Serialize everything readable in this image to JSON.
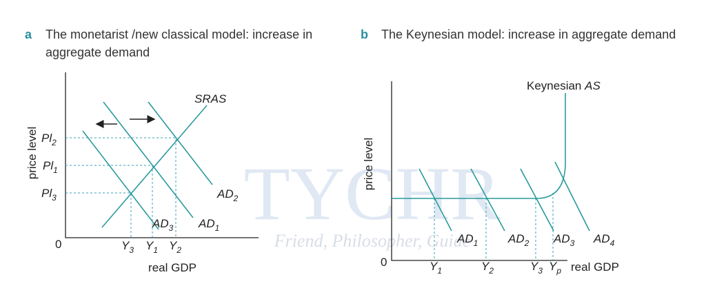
{
  "panel_a": {
    "letter": "a",
    "title_lines": [
      "The monetarist /new classical model: increase in",
      "aggregate demand"
    ],
    "y_axis": "price level",
    "x_axis": "real GDP",
    "origin": "0",
    "supply": "SRAS",
    "price_levels": [
      {
        "text": "Pl",
        "sub": "2"
      },
      {
        "text": "Pl",
        "sub": "1"
      },
      {
        "text": "Pl",
        "sub": "3"
      }
    ],
    "outputs": [
      {
        "text": "Y",
        "sub": "3"
      },
      {
        "text": "Y",
        "sub": "1"
      },
      {
        "text": "Y",
        "sub": "2"
      }
    ],
    "demand": [
      {
        "text": "AD",
        "sub": "3"
      },
      {
        "text": "AD",
        "sub": "1"
      },
      {
        "text": "AD",
        "sub": "2"
      }
    ]
  },
  "panel_b": {
    "letter": "b",
    "title": "The Keynesian model: increase in aggregate demand",
    "y_axis": "price level",
    "x_axis": "real GDP",
    "origin": "0",
    "supply_prefix": "Keynesian",
    "supply": "AS",
    "outputs": [
      {
        "text": "Y",
        "sub": "1"
      },
      {
        "text": "Y",
        "sub": "2"
      },
      {
        "text": "Y",
        "sub": "3"
      },
      {
        "text": "Y",
        "sub": "p"
      }
    ],
    "demand": [
      {
        "text": "AD",
        "sub": "1"
      },
      {
        "text": "AD",
        "sub": "2"
      },
      {
        "text": "AD",
        "sub": "3"
      },
      {
        "text": "AD",
        "sub": "4"
      }
    ]
  },
  "watermark": {
    "logo": "TYCHR",
    "tagline": "Friend, Philosopher, Guide"
  }
}
